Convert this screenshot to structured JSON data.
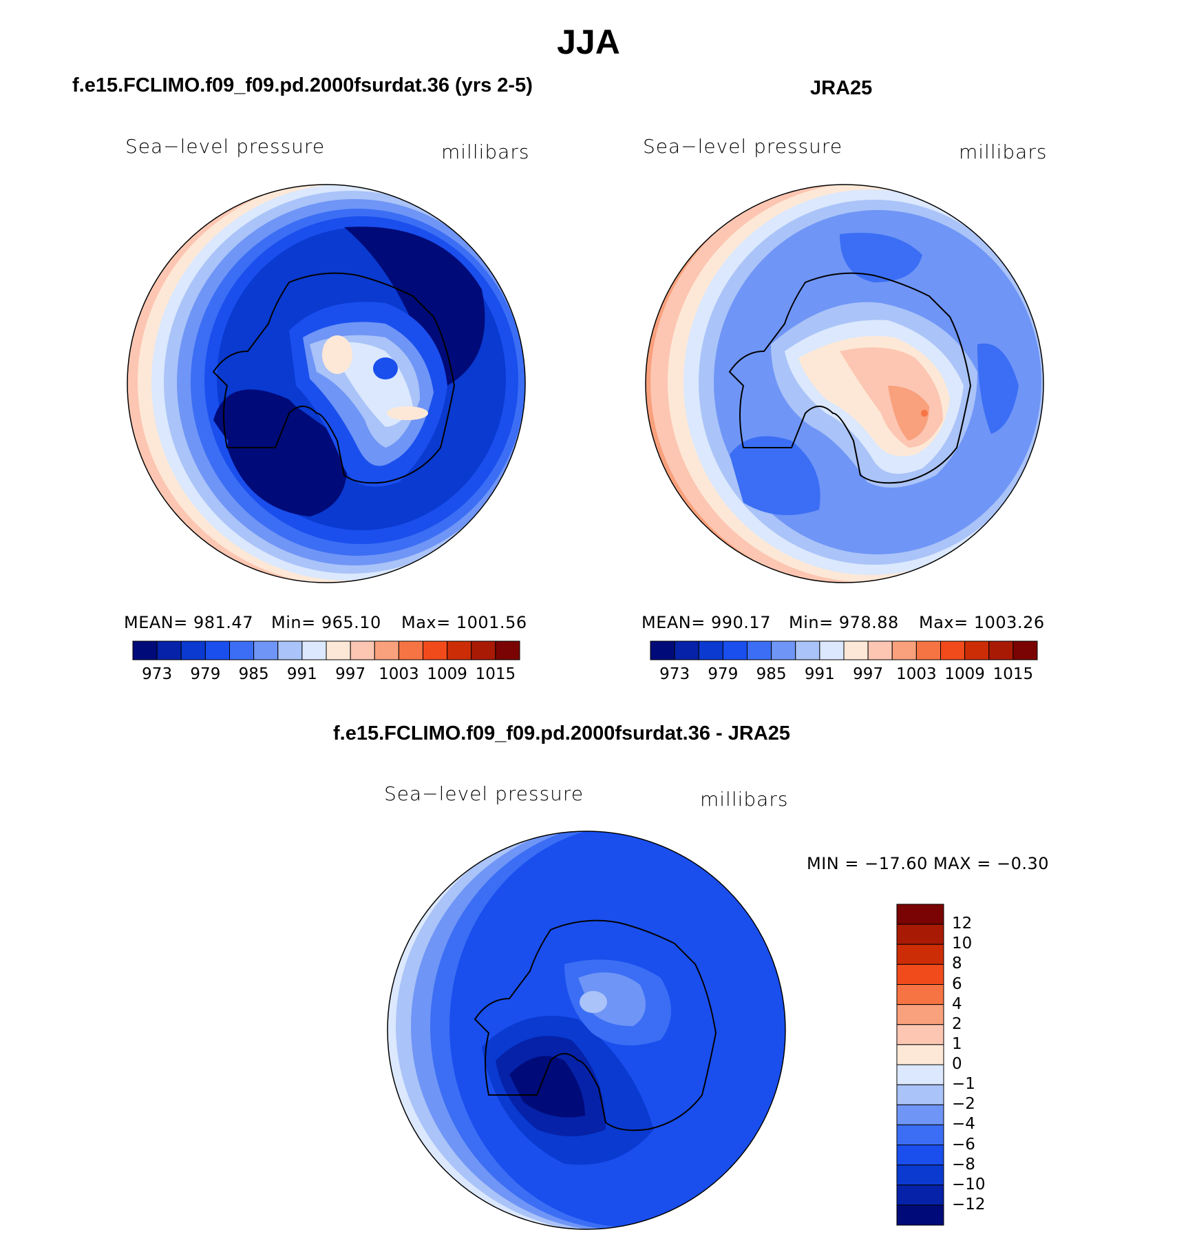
{
  "figure": {
    "title": "JJA"
  },
  "panels": {
    "model": {
      "title": "f.e15.FCLIMO.f09_f09.pd.2000fsurdat.36 (yrs 2-5)",
      "left_label": "Sea−level pressure",
      "right_label": "millibars",
      "stats": {
        "mean": "MEAN= 981.47",
        "min": "Min= 965.10",
        "max": "Max= 1001.56"
      }
    },
    "obs": {
      "title": "JRA25",
      "left_label": "Sea−level pressure",
      "right_label": "millibars",
      "stats": {
        "mean": "MEAN= 990.17",
        "min": "Min= 978.88",
        "max": "Max= 1003.26"
      }
    },
    "diff": {
      "title": "f.e15.FCLIMO.f09_f09.pd.2000fsurdat.36 - JRA25",
      "left_label": "Sea−level pressure",
      "right_label": "millibars",
      "stats": {
        "minmax": "MIN = −17.60 MAX =  −0.30"
      }
    }
  },
  "colorbars": {
    "abs": {
      "colors": [
        "#000b79",
        "#0522a8",
        "#0a3ad0",
        "#1a4fee",
        "#3b6ef4",
        "#6f95f6",
        "#aac3f8",
        "#dbe8fd",
        "#fde8d7",
        "#fcc6b2",
        "#f9a07c",
        "#f67443",
        "#f14b1c",
        "#cd2d06",
        "#a91a05",
        "#7a0403"
      ],
      "tick_labels": [
        "973",
        "979",
        "985",
        "991",
        "997",
        "1003",
        "1009",
        "1015"
      ]
    },
    "diff": {
      "colors": [
        "#000b79",
        "#0522a8",
        "#0a3ad0",
        "#1a4fee",
        "#3b6ef4",
        "#6f95f6",
        "#aac3f8",
        "#dbe8fd",
        "#fde8d7",
        "#fcc6b2",
        "#f9a07c",
        "#f67443",
        "#f14b1c",
        "#cd2d06",
        "#a91a05",
        "#7a0403"
      ],
      "tick_labels": [
        "12",
        "10",
        "8",
        "6",
        "4",
        "2",
        "1",
        "0",
        "−1",
        "−2",
        "−4",
        "−6",
        "−8",
        "−10",
        "−12"
      ]
    }
  },
  "chart_data": [
    {
      "type": "heatmap",
      "title": "f.e15.FCLIMO.f09_f09.pd.2000fsurdat.36 (yrs 2-5)",
      "variable": "Sea-level pressure",
      "units": "millibars",
      "projection": "south polar stereographic",
      "mean": 981.47,
      "min": 965.1,
      "max": 1001.56,
      "levels": [
        970,
        973,
        976,
        979,
        982,
        985,
        988,
        991,
        994,
        997,
        1000,
        1003,
        1006,
        1009,
        1012,
        1015
      ]
    },
    {
      "type": "heatmap",
      "title": "JRA25",
      "variable": "Sea-level pressure",
      "units": "millibars",
      "projection": "south polar stereographic",
      "mean": 990.17,
      "min": 978.88,
      "max": 1003.26,
      "levels": [
        970,
        973,
        976,
        979,
        982,
        985,
        988,
        991,
        994,
        997,
        1000,
        1003,
        1006,
        1009,
        1012,
        1015
      ]
    },
    {
      "type": "heatmap",
      "title": "f.e15.FCLIMO.f09_f09.pd.2000fsurdat.36 - JRA25",
      "variable": "Sea-level pressure",
      "units": "millibars",
      "projection": "south polar stereographic",
      "min": -17.6,
      "max": -0.3,
      "levels": [
        -12,
        -10,
        -8,
        -6,
        -4,
        -2,
        -1,
        0,
        1,
        2,
        4,
        6,
        8,
        10,
        12
      ]
    }
  ]
}
